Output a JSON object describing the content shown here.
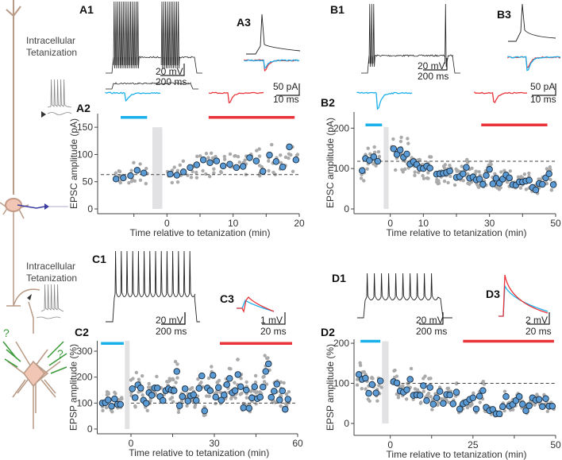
{
  "cartoon_top": {
    "line1": "Intracellular",
    "line2": "Tetanization"
  },
  "cartoon_bottom": {
    "line1": "Intracellular",
    "line2": "Tetanization",
    "question_mark": "?"
  },
  "panels": {
    "A1": "A1",
    "A3": "A3",
    "A2": "A2",
    "B1": "B1",
    "B3": "B3",
    "B2": "B2",
    "C1": "C1",
    "C3": "C3",
    "C2": "C2",
    "D1": "D1",
    "D3": "D3",
    "D2": "D2"
  },
  "scalebars": {
    "A1_v": "20 mV",
    "A1_t": "200 ms",
    "A3_v": "50 pA",
    "A3_t": "10 ms",
    "B1_v": "20 mV",
    "B1_t": "200 ms",
    "B3_v": "50 pA",
    "B3_t": "10 ms",
    "C1_v": "20 mV",
    "C1_t": "200 ms",
    "C3_v": "1 mV",
    "C3_t": "20 ms",
    "D1_v": "20 mV",
    "D1_t": "200 ms",
    "D3_v": "2 mV",
    "D3_t": "20 ms"
  },
  "colors": {
    "baseline": "#1ab0ea",
    "post": "#e8343a",
    "mean_fill": "#5b9bd5",
    "raw": "#aaaaaa",
    "tetanus": "#e2e2e4"
  },
  "chart_data": [
    {
      "id": "A2",
      "type": "scatter",
      "ylabel": "EPSC amplitude (pA)",
      "xlabel": "Time relative to tetanization (min)",
      "xlim": [
        -10,
        20
      ],
      "ylim": [
        0,
        175
      ],
      "xticks": [
        {
          "v": -5,
          "label": ""
        },
        {
          "v": 0,
          "label": "0"
        },
        {
          "v": 5,
          "label": ""
        },
        {
          "v": 10,
          "label": "10"
        },
        {
          "v": 15,
          "label": ""
        },
        {
          "v": 20,
          "label": "20"
        }
      ],
      "yticks": [
        {
          "v": 0,
          "label": "0"
        },
        {
          "v": 50,
          "label": "50"
        },
        {
          "v": 100,
          "label": "100"
        },
        {
          "v": 150,
          "label": "150"
        }
      ],
      "baseline_level": 63,
      "tetanus_window": [
        -2.2,
        -0.7
      ],
      "tetanus_height": 150,
      "baseline_bar": [
        -7,
        -3
      ],
      "post_bar": [
        6.3,
        19.3
      ],
      "bar_level": 168,
      "mean_series": {
        "x": [
          -7.7,
          -6.6,
          -5.5,
          -4.5,
          -3.5,
          0.5,
          1.5,
          2.5,
          3.5,
          4.5,
          5.5,
          6.5,
          7.5,
          8.5,
          9.5,
          10.5,
          11.5,
          12.5,
          13.5,
          14.5,
          15.5,
          16.5,
          17.5,
          18.5,
          19.5
        ],
        "y": [
          55,
          57,
          61,
          71,
          66,
          64,
          62,
          68,
          76,
          81,
          90,
          85,
          88,
          79,
          82,
          76,
          78,
          94,
          88,
          69,
          99,
          87,
          77,
          114,
          90
        ]
      }
    },
    {
      "id": "B2",
      "type": "scatter",
      "ylabel": "EPSC amplitude (pA)",
      "xlabel": "Time relative to tetanization (min)",
      "xlim": [
        -10,
        50
      ],
      "ylim": [
        0,
        240
      ],
      "xticks": [
        {
          "v": 0,
          "label": "0"
        },
        {
          "v": 10,
          "label": "10"
        },
        {
          "v": 20,
          "label": ""
        },
        {
          "v": 30,
          "label": "30"
        },
        {
          "v": 40,
          "label": ""
        },
        {
          "v": 50,
          "label": "50"
        }
      ],
      "yticks": [
        {
          "v": 0,
          "label": "0"
        },
        {
          "v": 100,
          "label": "100"
        },
        {
          "v": 200,
          "label": "200"
        }
      ],
      "baseline_level": 118,
      "tetanus_window": [
        -2,
        -0.5
      ],
      "tetanus_height": 203,
      "baseline_bar": [
        -7.5,
        -2.5
      ],
      "post_bar": [
        27.5,
        47.5
      ],
      "bar_level": 208,
      "mean_series": {
        "x": [
          -8.5,
          -7.5,
          -6.3,
          -5,
          -3.8,
          1,
          2,
          3,
          4,
          5,
          6,
          7,
          8,
          9,
          10,
          11,
          12,
          14,
          15,
          16,
          17,
          18,
          20,
          21,
          22,
          23,
          24,
          25,
          26,
          27,
          28,
          29,
          30,
          31,
          32,
          33,
          34,
          35,
          36,
          37,
          38,
          39,
          40,
          41,
          42,
          43,
          44,
          45,
          46,
          47,
          48,
          49.3
        ],
        "y": [
          95,
          125,
          120,
          129,
          118,
          149,
          135,
          146,
          128,
          136,
          111,
          117,
          110,
          101,
          100,
          106,
          101,
          86,
          87,
          88,
          90,
          94,
          78,
          80,
          87,
          103,
          76,
          79,
          72,
          74,
          61,
          83,
          98,
          62,
          76,
          64,
          74,
          84,
          77,
          60,
          59,
          67,
          67,
          69,
          71,
          53,
          47,
          63,
          61,
          77,
          87,
          60
        ]
      }
    },
    {
      "id": "C2",
      "type": "scatter",
      "ylabel": "EPSP amplitude (%)",
      "xlabel": "Time relative to tetanization (min)",
      "xlim": [
        -11,
        60
      ],
      "ylim": [
        0,
        340
      ],
      "xticks": [
        {
          "v": 0,
          "label": "0"
        },
        {
          "v": 15,
          "label": ""
        },
        {
          "v": 30,
          "label": "30"
        },
        {
          "v": 45,
          "label": ""
        },
        {
          "v": 60,
          "label": "60"
        }
      ],
      "yticks": [
        {
          "v": 0,
          "label": "0"
        },
        {
          "v": 100,
          "label": "100"
        },
        {
          "v": 200,
          "label": "200"
        },
        {
          "v": 300,
          "label": "300"
        }
      ],
      "baseline_level": 100,
      "tetanus_window": [
        -2.2,
        -0.5
      ],
      "tetanus_height": 340,
      "baseline_bar": [
        -10.8,
        -2.6
      ],
      "post_bar": [
        32,
        58
      ],
      "bar_level": 330,
      "mean_series": {
        "x": [
          -10.3,
          -9.2,
          -8.2,
          -7,
          -5.9,
          -4.8,
          -3.8,
          0.5,
          1.5,
          2.5,
          3.5,
          4.5,
          5.5,
          6.5,
          7.5,
          8.5,
          9.5,
          10.5,
          11.5,
          12.5,
          13.5,
          14.5,
          15.5,
          16.5,
          17.5,
          18.5,
          19.5,
          20.5,
          21.5,
          22.5,
          23.5,
          24.5,
          25.5,
          26.5,
          27.5,
          28.5,
          29.5,
          30.5,
          31.5,
          32.5,
          33.5,
          34.5,
          35.5,
          36.5,
          37.5,
          38.5,
          39.5,
          40.5,
          41.5,
          42.5,
          43.5,
          44.5,
          45.5,
          46.5,
          47.5,
          48.5,
          49.5,
          50.5,
          51.5,
          52.5,
          53.5,
          54.5,
          55.5,
          56.5
        ],
        "y": [
          100,
          102,
          112,
          88,
          116,
          95,
          95,
          155,
          121,
          170,
          158,
          111,
          99,
          140,
          130,
          158,
          158,
          125,
          110,
          148,
          155,
          150,
          148,
          222,
          90,
          125,
          155,
          108,
          128,
          132,
          110,
          157,
          205,
          70,
          158,
          148,
          207,
          123,
          160,
          111,
          131,
          171,
          195,
          140,
          148,
          210,
          163,
          82,
          150,
          80,
          120,
          163,
          117,
          123,
          162,
          222,
          251,
          122,
          146,
          173,
          112,
          147,
          76,
          115
        ]
      }
    },
    {
      "id": "D2",
      "type": "scatter",
      "ylabel": "EPSP amplitude (%)",
      "xlabel": "Time relative to tetanization (min)",
      "xlim": [
        -10,
        50
      ],
      "ylim": [
        0,
        210
      ],
      "xticks": [
        {
          "v": 0,
          "label": "0"
        },
        {
          "v": 12.5,
          "label": ""
        },
        {
          "v": 25,
          "label": "25"
        },
        {
          "v": 37.5,
          "label": ""
        },
        {
          "v": 50,
          "label": "50"
        }
      ],
      "yticks": [
        {
          "v": 0,
          "label": "0"
        },
        {
          "v": 100,
          "label": "100"
        },
        {
          "v": 200,
          "label": "200"
        }
      ],
      "baseline_level": 100,
      "tetanus_window": [
        -2.5,
        -0.5
      ],
      "tetanus_height": 205,
      "baseline_bar": [
        -9,
        -3
      ],
      "post_bar": [
        22,
        49.5
      ],
      "bar_level": 205,
      "mean_series": {
        "x": [
          -9.5,
          -8.5,
          -7.5,
          -6.5,
          -5.5,
          -4.3,
          -3,
          1,
          2,
          3,
          4,
          5,
          6,
          7,
          8,
          9,
          10,
          11,
          12,
          13,
          14,
          15,
          16,
          17,
          18,
          19,
          20,
          21,
          22,
          23,
          24,
          25,
          26,
          27,
          28,
          29,
          30,
          31,
          32,
          33,
          34,
          35,
          36,
          37,
          38,
          39,
          40,
          41,
          42,
          43,
          44,
          45,
          46,
          47,
          48,
          49
        ],
        "y": [
          122,
          110,
          113,
          75,
          97,
          76,
          106,
          104,
          101,
          81,
          78,
          84,
          110,
          70,
          71,
          70,
          94,
          57,
          90,
          48,
          64,
          80,
          50,
          72,
          71,
          49,
          78,
          36,
          49,
          53,
          60,
          64,
          36,
          68,
          82,
          40,
          32,
          35,
          24,
          24,
          42,
          67,
          43,
          47,
          57,
          67,
          48,
          32,
          44,
          64,
          58,
          60,
          42,
          62,
          43,
          43
        ]
      }
    }
  ]
}
